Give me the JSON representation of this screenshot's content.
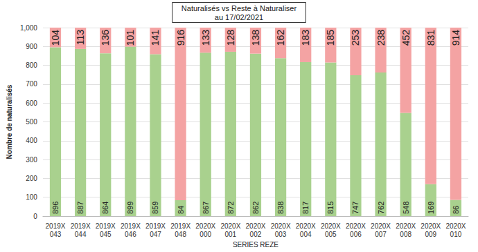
{
  "chart_data": {
    "type": "bar",
    "title": "Naturalisés vs Reste à Naturaliser\nau 17/02/2021",
    "x_label": "SERIES REZE",
    "y_label": "Nombre de naturalisés",
    "categories": [
      "2019X\n043",
      "2019X\n044",
      "2019X\n045",
      "2019X\n046",
      "2019X\n047",
      "2019X\n048",
      "2020X\n000",
      "2020X\n001",
      "2020X\n002",
      "2020X\n003",
      "2020X\n004",
      "2020X\n005",
      "2020X\n006",
      "2020X\n007",
      "2020X\n008",
      "2020X\n009",
      "2020X\n010"
    ],
    "series": [
      {
        "color": "#a9d18e",
        "values": [
          896,
          887,
          864,
          899,
          859,
          84,
          867,
          872,
          862,
          838,
          817,
          815,
          747,
          762,
          548,
          169,
          86
        ]
      },
      {
        "color": "#f4a3a3",
        "values": [
          104,
          113,
          136,
          101,
          141,
          916,
          133,
          128,
          138,
          162,
          183,
          185,
          253,
          238,
          452,
          831,
          914
        ]
      }
    ],
    "ylim": [
      0,
      1000
    ],
    "yticks": [
      0,
      100,
      200,
      300,
      400,
      500,
      600,
      700,
      800,
      900,
      1000
    ],
    "stacked": true,
    "data_labels": true,
    "grid": true
  }
}
